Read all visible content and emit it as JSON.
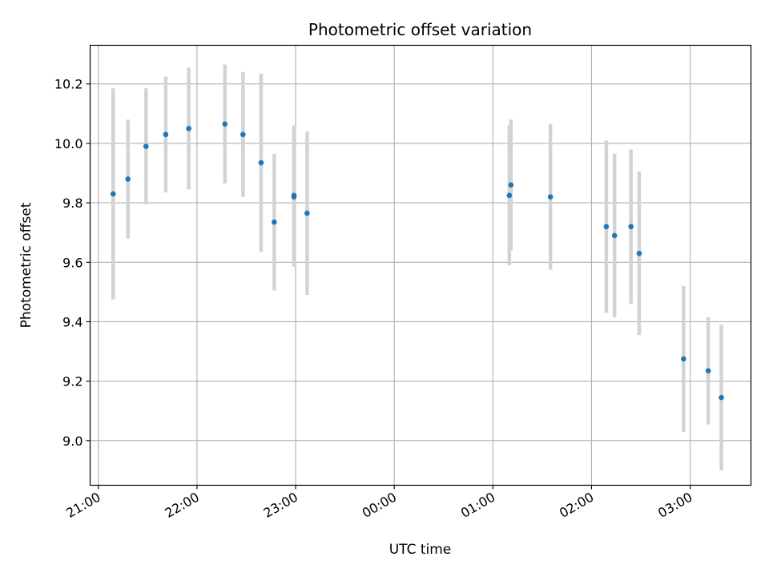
{
  "chart_data": {
    "type": "scatter",
    "title": "Photometric offset variation",
    "xlabel": "UTC time",
    "ylabel": "Photometric offset",
    "x_axis_type": "time",
    "xlim": [
      "20:55",
      "03:37"
    ],
    "ylim": [
      8.85,
      10.33
    ],
    "x_ticks": [
      "21:00",
      "22:00",
      "23:00",
      "00:00",
      "01:00",
      "02:00",
      "03:00"
    ],
    "y_ticks": [
      "9.0",
      "9.2",
      "9.4",
      "9.6",
      "9.8",
      "10.0",
      "10.2"
    ],
    "grid": true,
    "marker_color": "#1f77b4",
    "errorbar_color": "#d3d3d3",
    "points": [
      {
        "time": "21:09",
        "y": 9.83,
        "err": 0.355
      },
      {
        "time": "21:18",
        "y": 9.88,
        "err": 0.2
      },
      {
        "time": "21:29",
        "y": 9.99,
        "err": 0.195
      },
      {
        "time": "21:41",
        "y": 10.03,
        "err": 0.195
      },
      {
        "time": "21:55",
        "y": 10.05,
        "err": 0.205
      },
      {
        "time": "22:17",
        "y": 10.065,
        "err": 0.2
      },
      {
        "time": "22:28",
        "y": 10.03,
        "err": 0.21
      },
      {
        "time": "22:39",
        "y": 9.935,
        "err": 0.3
      },
      {
        "time": "22:47",
        "y": 9.735,
        "err": 0.23
      },
      {
        "time": "22:59",
        "y": 9.825,
        "err": 0.235
      },
      {
        "time": "22:59",
        "y": 9.82,
        "err": 0.235
      },
      {
        "time": "23:07",
        "y": 9.765,
        "err": 0.275
      },
      {
        "time": "01:10",
        "y": 9.825,
        "err": 0.235
      },
      {
        "time": "01:11",
        "y": 9.86,
        "err": 0.22
      },
      {
        "time": "01:35",
        "y": 9.82,
        "err": 0.245
      },
      {
        "time": "02:09",
        "y": 9.72,
        "err": 0.29
      },
      {
        "time": "02:14",
        "y": 9.69,
        "err": 0.275
      },
      {
        "time": "02:24",
        "y": 9.72,
        "err": 0.26
      },
      {
        "time": "02:29",
        "y": 9.63,
        "err": 0.275
      },
      {
        "time": "02:56",
        "y": 9.275,
        "err": 0.245
      },
      {
        "time": "03:11",
        "y": 9.235,
        "err": 0.18
      },
      {
        "time": "03:19",
        "y": 9.145,
        "err": 0.245
      }
    ]
  }
}
